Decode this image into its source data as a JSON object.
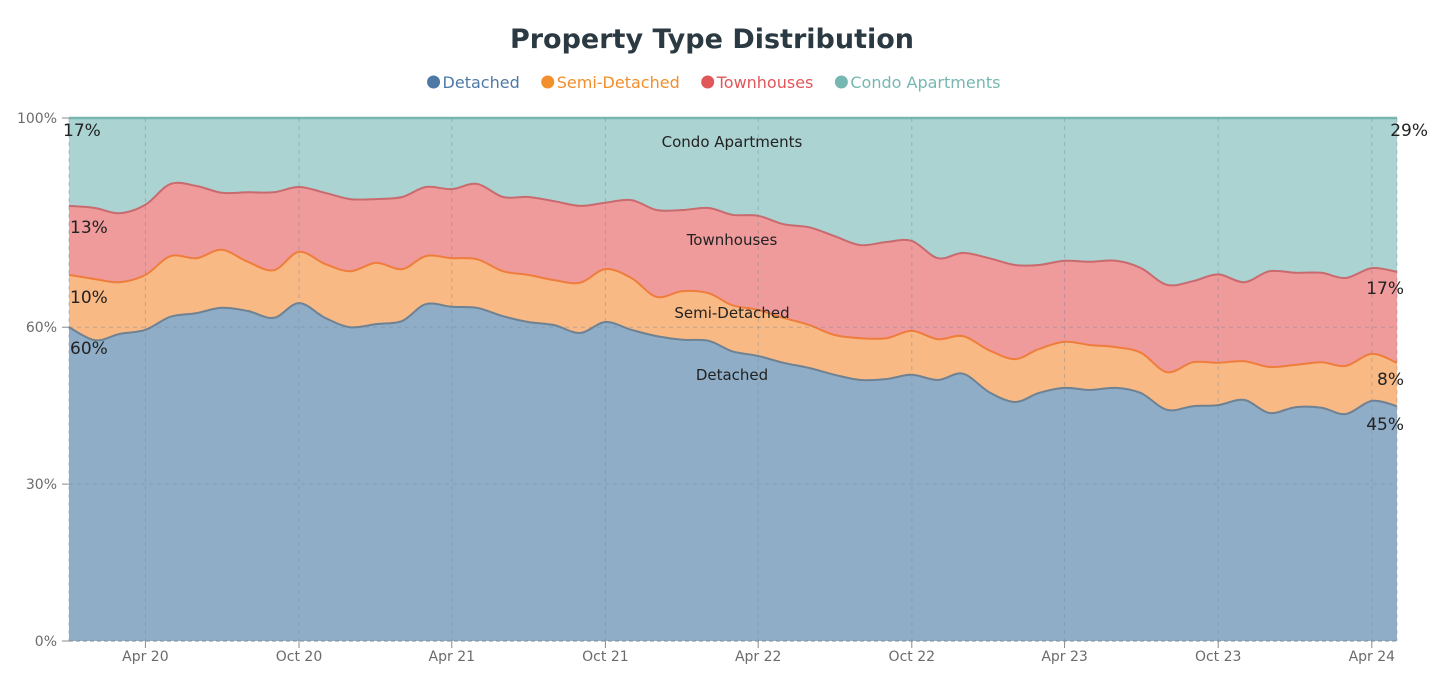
{
  "chart_data": {
    "type": "area",
    "stacked": true,
    "normalized": true,
    "title": "Property Type Distribution",
    "xlabel": "",
    "ylabel": "",
    "ylim": [
      0,
      100
    ],
    "yticks": [
      {
        "value": 0,
        "label": "0%"
      },
      {
        "value": 30,
        "label": "30%"
      },
      {
        "value": 60,
        "label": "60%"
      },
      {
        "value": 100,
        "label": "100%"
      }
    ],
    "xrange": [
      "2020-01",
      "2024-05"
    ],
    "xticks": [
      {
        "date": "2020-04",
        "label": "Apr 20"
      },
      {
        "date": "2020-10",
        "label": "Oct 20"
      },
      {
        "date": "2021-04",
        "label": "Apr 21"
      },
      {
        "date": "2021-10",
        "label": "Oct 21"
      },
      {
        "date": "2022-04",
        "label": "Apr 22"
      },
      {
        "date": "2022-10",
        "label": "Oct 22"
      },
      {
        "date": "2023-04",
        "label": "Apr 23"
      },
      {
        "date": "2023-10",
        "label": "Oct 23"
      },
      {
        "date": "2024-04",
        "label": "Apr 24"
      }
    ],
    "grid": true,
    "legend_position": "top-center",
    "x": [
      "2020-01",
      "2020-02",
      "2020-03",
      "2020-04",
      "2020-05",
      "2020-06",
      "2020-07",
      "2020-08",
      "2020-09",
      "2020-10",
      "2020-11",
      "2020-12",
      "2021-01",
      "2021-02",
      "2021-03",
      "2021-04",
      "2021-05",
      "2021-06",
      "2021-07",
      "2021-08",
      "2021-09",
      "2021-10",
      "2021-11",
      "2021-12",
      "2022-01",
      "2022-02",
      "2022-03",
      "2022-04",
      "2022-05",
      "2022-06",
      "2022-07",
      "2022-08",
      "2022-09",
      "2022-10",
      "2022-11",
      "2022-12",
      "2023-01",
      "2023-02",
      "2023-03",
      "2023-04",
      "2023-05",
      "2023-06",
      "2023-07",
      "2023-08",
      "2023-09",
      "2023-10",
      "2023-11",
      "2023-12",
      "2024-01",
      "2024-02",
      "2024-03",
      "2024-04",
      "2024-05"
    ],
    "series": [
      {
        "name": "Detached",
        "color": "#4e79a7",
        "fill": "#8fadc7",
        "line": "#6e8293",
        "values": [
          60.0,
          57.5,
          58.7,
          59.5,
          62.0,
          62.7,
          63.7,
          63.1,
          61.8,
          64.6,
          61.8,
          60.0,
          60.6,
          61.2,
          64.4,
          63.9,
          63.7,
          62.1,
          61.0,
          60.4,
          58.9,
          61.0,
          59.5,
          58.3,
          57.6,
          57.4,
          55.4,
          54.5,
          53.2,
          52.2,
          50.9,
          49.9,
          50.1,
          50.9,
          49.9,
          51.1,
          47.6,
          45.7,
          47.4,
          48.4,
          48.0,
          48.4,
          47.4,
          44.2,
          44.9,
          45.1,
          46.1,
          43.6,
          44.7,
          44.6,
          43.4,
          45.9,
          44.9
        ]
      },
      {
        "name": "Semi-Detached",
        "color": "#f28e2b",
        "fill": "#f8b985",
        "line": "#ef7d3c",
        "values": [
          10.0,
          11.7,
          9.9,
          10.5,
          11.6,
          10.5,
          11.1,
          9.4,
          9.1,
          9.8,
          10.3,
          10.7,
          11.7,
          9.9,
          9.2,
          9.3,
          9.3,
          8.6,
          9.0,
          8.6,
          9.6,
          10.1,
          9.9,
          7.5,
          9.3,
          9.1,
          8.8,
          8.8,
          8.6,
          8.2,
          7.6,
          8.0,
          7.8,
          8.4,
          7.8,
          7.2,
          8.0,
          8.2,
          8.4,
          8.8,
          8.6,
          7.8,
          7.7,
          7.2,
          8.4,
          8.1,
          7.4,
          8.8,
          8.1,
          8.7,
          9.2,
          9.0,
          8.3
        ]
      },
      {
        "name": "Townhouses",
        "color": "#e15759",
        "fill": "#ef9a9b",
        "line": "#c96a6f",
        "values": [
          13.2,
          13.6,
          13.2,
          13.4,
          13.8,
          13.8,
          10.9,
          13.3,
          14.9,
          12.4,
          13.6,
          13.8,
          12.2,
          13.8,
          13.2,
          13.2,
          14.4,
          14.2,
          14.9,
          15.1,
          14.7,
          12.7,
          14.9,
          16.6,
          15.5,
          16.3,
          17.3,
          18.0,
          17.9,
          18.7,
          18.9,
          17.8,
          18.4,
          17.2,
          15.5,
          15.9,
          17.6,
          18.0,
          16.1,
          15.5,
          15.9,
          16.5,
          16.2,
          16.7,
          15.5,
          16.9,
          15.1,
          18.3,
          17.6,
          17.1,
          16.8,
          16.4,
          17.4
        ]
      },
      {
        "name": "Condo Apartments",
        "color": "#76b7b2",
        "fill": "#aad3d2",
        "line": "#76b7b2",
        "values": [
          16.8,
          17.2,
          18.2,
          16.6,
          12.6,
          13.0,
          14.3,
          14.2,
          14.2,
          13.2,
          14.3,
          15.5,
          15.5,
          15.1,
          13.2,
          13.6,
          12.6,
          15.1,
          15.1,
          15.9,
          16.8,
          16.2,
          15.7,
          17.6,
          17.6,
          17.2,
          18.5,
          18.7,
          20.3,
          20.9,
          22.6,
          24.3,
          23.7,
          23.5,
          26.8,
          25.8,
          26.8,
          28.1,
          28.1,
          27.3,
          27.5,
          27.3,
          28.7,
          31.9,
          31.2,
          29.9,
          31.4,
          29.3,
          29.6,
          29.6,
          30.6,
          28.7,
          29.4
        ]
      }
    ],
    "annotations": [
      {
        "text": "Condo Apartments",
        "series": "Condo Apartments",
        "date": "2022-02"
      },
      {
        "text": "Townhouses",
        "series": "Townhouses",
        "date": "2022-02"
      },
      {
        "text": "Semi-Detached",
        "series": "Semi-Detached",
        "date": "2022-02"
      },
      {
        "text": "Detached",
        "series": "Detached",
        "date": "2022-02"
      }
    ],
    "start_labels": [
      "60%",
      "10%",
      "13%",
      "17%"
    ],
    "end_labels": [
      "45%",
      "8%",
      "17%",
      "29%"
    ]
  }
}
